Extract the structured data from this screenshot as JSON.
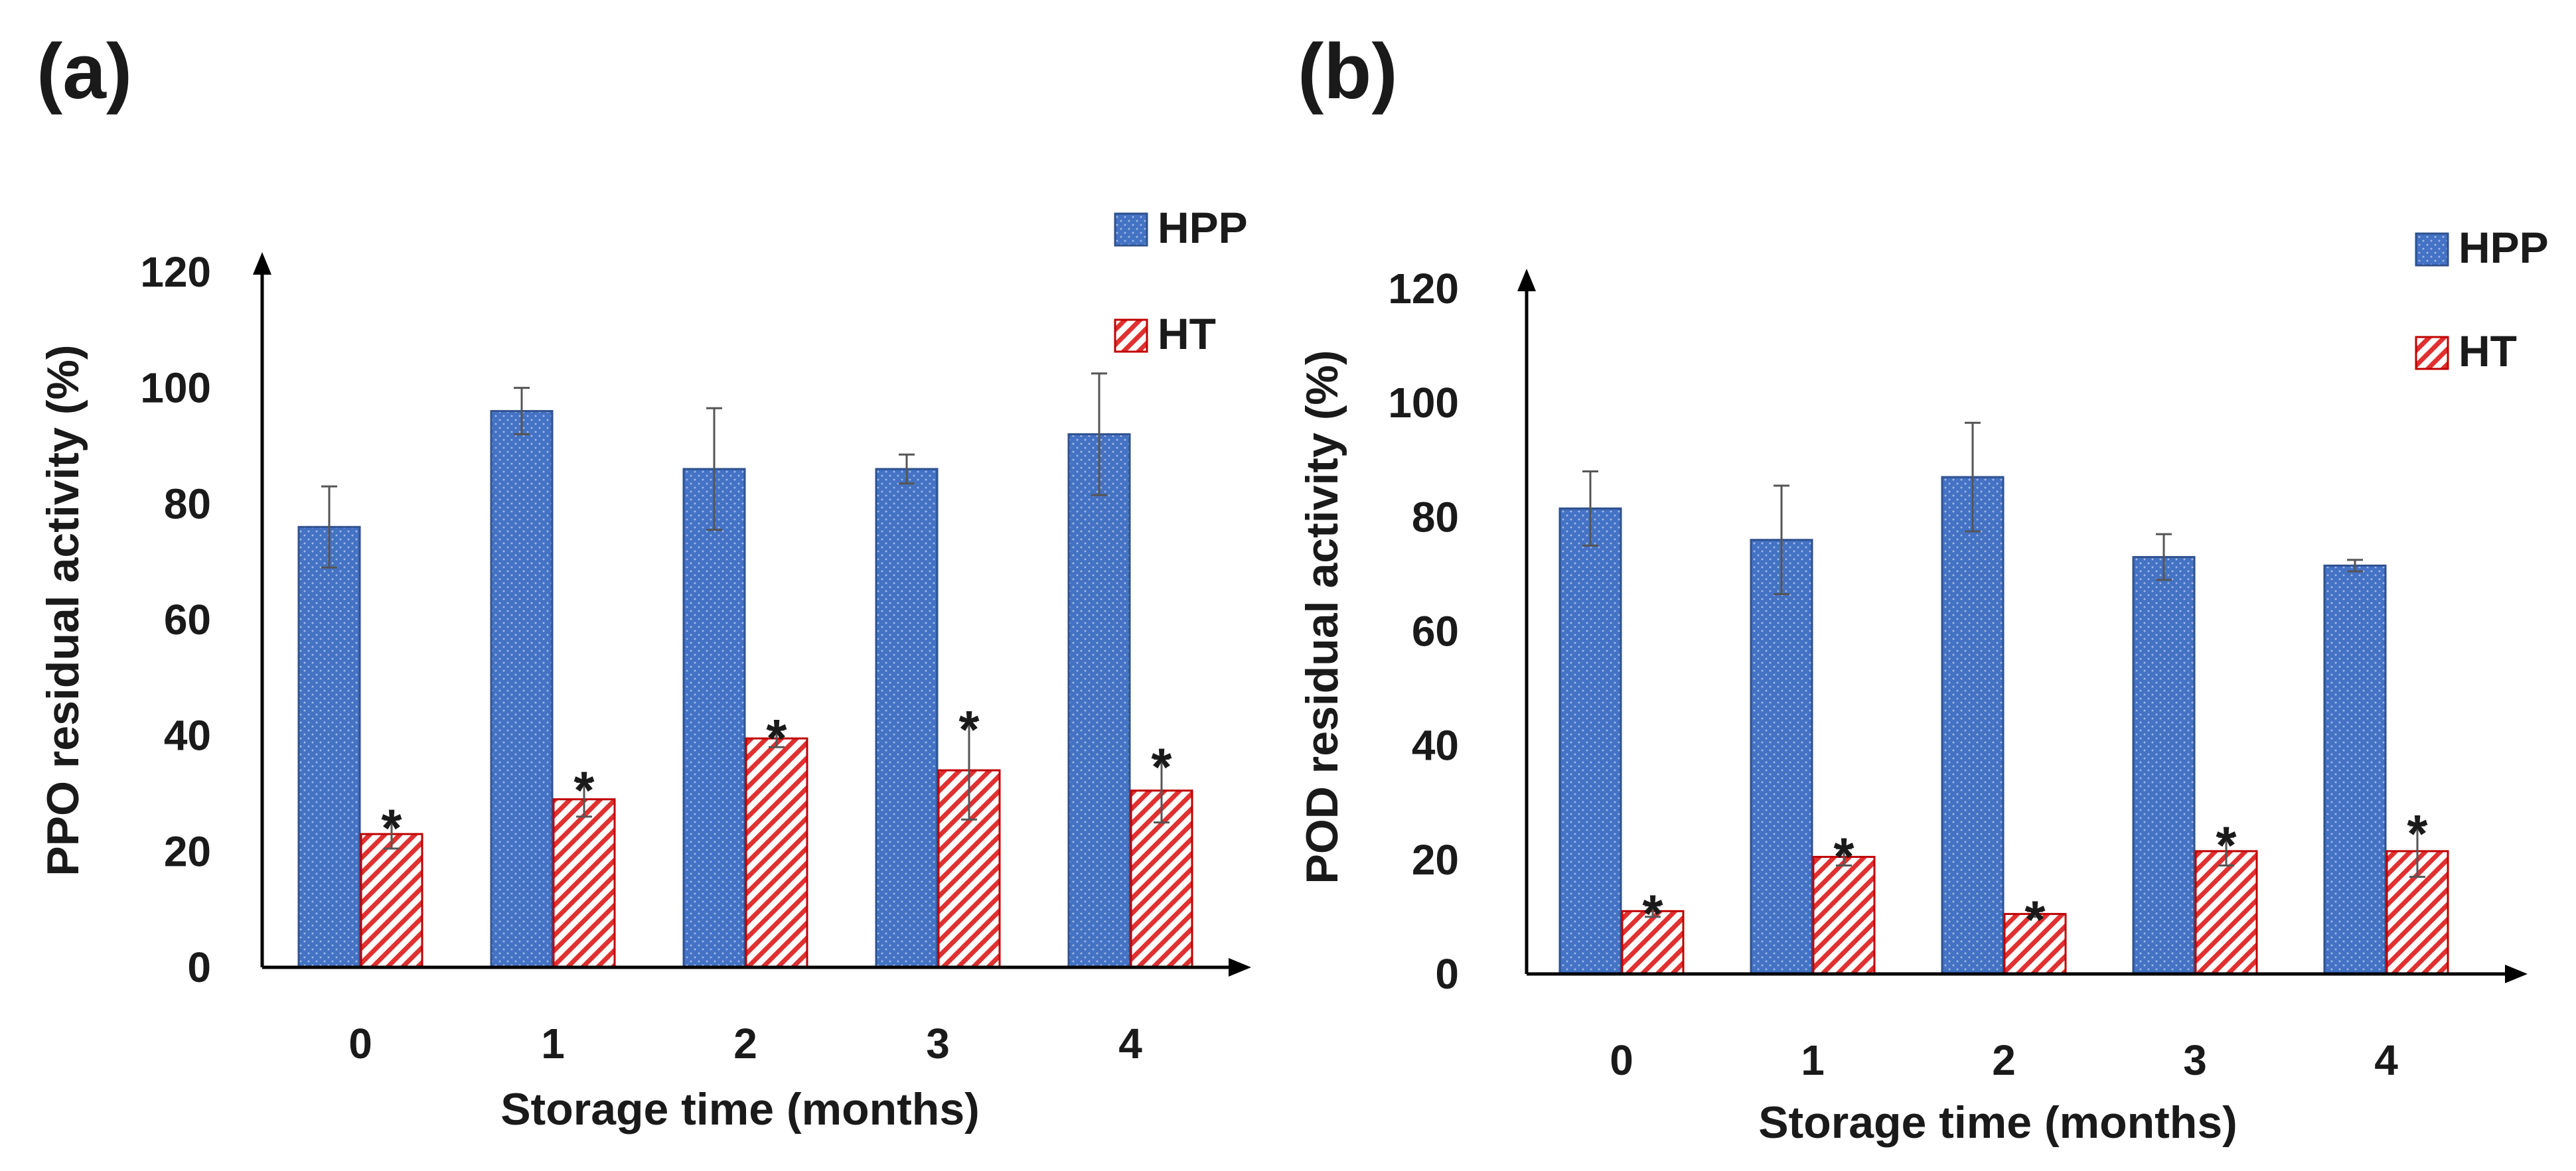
{
  "chart_data": [
    {
      "type": "bar",
      "panel_label": "(a)",
      "categories": [
        "0",
        "1",
        "2",
        "3",
        "4"
      ],
      "xlabel": "Storage time (months)",
      "ylabel": "PPO residual activity  (%)",
      "ylim": [
        0,
        120
      ],
      "yticks": [
        "0",
        "20",
        "40",
        "60",
        "80",
        "100",
        "120"
      ],
      "legend_position": "top-right",
      "series": [
        {
          "name": "HPP",
          "values": [
            76,
            96,
            86,
            86,
            92
          ],
          "errors": [
            7,
            4,
            10.5,
            2.5,
            10.5
          ],
          "markers": [
            "",
            "",
            "",
            "",
            ""
          ]
        },
        {
          "name": "HT",
          "values": [
            23,
            29,
            39.5,
            34,
            30.5
          ],
          "errors": [
            2.5,
            3,
            1.5,
            8.5,
            5.5
          ],
          "markers": [
            "*",
            "*",
            "*",
            "*",
            "*"
          ]
        }
      ]
    },
    {
      "type": "bar",
      "panel_label": "(b)",
      "categories": [
        "0",
        "1",
        "2",
        "3",
        "4"
      ],
      "xlabel": "Storage time (months)",
      "ylabel": "POD residual activity (%)",
      "ylim": [
        0,
        120
      ],
      "yticks": [
        "0",
        "20",
        "40",
        "60",
        "80",
        "100",
        "120"
      ],
      "legend_position": "top-right",
      "series": [
        {
          "name": "HPP",
          "values": [
            81.5,
            76,
            87,
            73,
            71.5
          ],
          "errors": [
            6.5,
            9.5,
            9.5,
            4,
            1
          ],
          "markers": [
            "",
            "",
            "",
            "",
            ""
          ]
        },
        {
          "name": "HT",
          "values": [
            11,
            20.5,
            10.5,
            21.5,
            21.5
          ],
          "errors": [
            1,
            1.5,
            0.5,
            2.5,
            4.5
          ],
          "markers": [
            "*",
            "*",
            "*",
            "*",
            "*"
          ]
        }
      ]
    }
  ]
}
